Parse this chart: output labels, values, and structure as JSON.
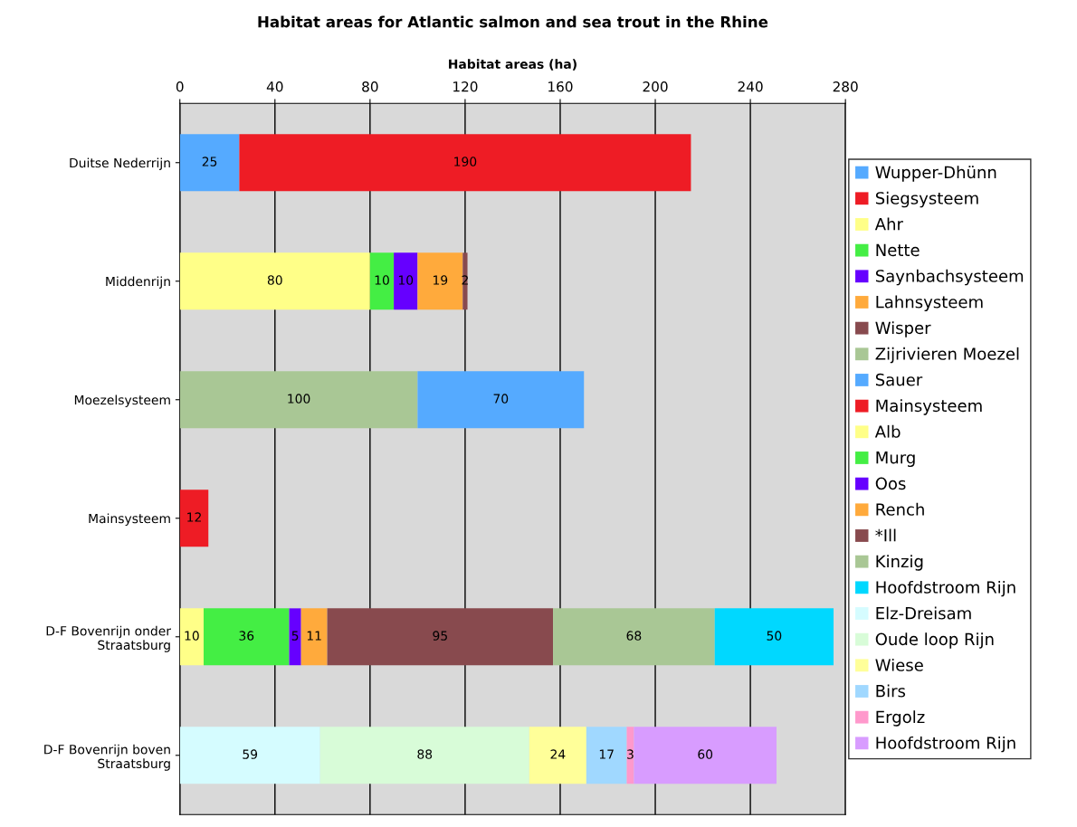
{
  "chart_data": {
    "type": "bar",
    "orientation": "horizontal",
    "stacked": true,
    "data_labels": true,
    "grid": "x",
    "legend": "right",
    "title": "Habitat areas for Atlantic salmon and sea trout in the Rhine",
    "xlabel": "Habitat areas (ha)",
    "categories": [
      "Duitse Nederrijn",
      "Middenrijn",
      "Moezelsysteem",
      "Mainsysteem",
      "D-F Bovenrijn onder Straatsburg",
      "D-F Bovenrijn boven Straatsburg"
    ],
    "xlim": [
      0,
      280
    ],
    "xticks": [
      0,
      40,
      80,
      120,
      160,
      200,
      240,
      280
    ],
    "series": [
      {
        "name": "Wupper-Dhünn",
        "color": "#55aaff",
        "values": [
          25,
          null,
          null,
          null,
          null,
          null
        ]
      },
      {
        "name": "Siegsysteem",
        "color": "#ee1c25",
        "values": [
          190,
          null,
          null,
          null,
          null,
          null
        ]
      },
      {
        "name": "Ahr",
        "color": "#ffff88",
        "values": [
          null,
          80,
          null,
          null,
          null,
          null
        ]
      },
      {
        "name": "Nette",
        "color": "#44ee44",
        "values": [
          null,
          10,
          null,
          null,
          null,
          null
        ]
      },
      {
        "name": "Saynbachsysteem",
        "color": "#6600ff",
        "values": [
          null,
          10,
          null,
          null,
          null,
          null
        ]
      },
      {
        "name": "Lahnsysteem",
        "color": "#ffaa3c",
        "values": [
          null,
          19,
          null,
          null,
          null,
          null
        ]
      },
      {
        "name": "Wisper",
        "color": "#884a4e",
        "values": [
          null,
          2,
          null,
          null,
          null,
          null
        ]
      },
      {
        "name": "Zijrivieren Moezel",
        "color": "#a9c795",
        "values": [
          null,
          null,
          100,
          null,
          null,
          null
        ]
      },
      {
        "name": "Sauer",
        "color": "#55aaff",
        "values": [
          null,
          null,
          70,
          null,
          null,
          null
        ]
      },
      {
        "name": "Mainsysteem",
        "color": "#ee1c25",
        "values": [
          null,
          null,
          null,
          12,
          null,
          null
        ]
      },
      {
        "name": "Alb",
        "color": "#ffff88",
        "values": [
          null,
          null,
          null,
          null,
          10,
          null
        ]
      },
      {
        "name": "Murg",
        "color": "#44ee44",
        "values": [
          null,
          null,
          null,
          null,
          36,
          null
        ]
      },
      {
        "name": "Oos",
        "color": "#6600ff",
        "values": [
          null,
          null,
          null,
          null,
          5,
          null
        ]
      },
      {
        "name": "Rench",
        "color": "#ffaa3c",
        "values": [
          null,
          null,
          null,
          null,
          11,
          null
        ]
      },
      {
        "name": "*Ill",
        "color": "#884a4e",
        "values": [
          null,
          null,
          null,
          null,
          95,
          null
        ]
      },
      {
        "name": "Kinzig",
        "color": "#a9c795",
        "values": [
          null,
          null,
          null,
          null,
          68,
          null
        ]
      },
      {
        "name": "Hoofdstroom Rijn",
        "color": "#00d8ff",
        "values": [
          null,
          null,
          null,
          null,
          50,
          null
        ]
      },
      {
        "name": "Elz-Dreisam",
        "color": "#d5fcff",
        "values": [
          null,
          null,
          null,
          null,
          null,
          59
        ]
      },
      {
        "name": "Oude loop Rijn",
        "color": "#d8fcd8",
        "values": [
          null,
          null,
          null,
          null,
          null,
          88
        ]
      },
      {
        "name": "Wiese",
        "color": "#ffff99",
        "values": [
          null,
          null,
          null,
          null,
          null,
          24
        ]
      },
      {
        "name": "Birs",
        "color": "#a0d8ff",
        "values": [
          null,
          null,
          null,
          null,
          null,
          17
        ]
      },
      {
        "name": "Ergolz",
        "color": "#ff99cc",
        "values": [
          null,
          null,
          null,
          null,
          null,
          3
        ]
      },
      {
        "name": "Hoofdstroom Rijn",
        "color": "#d89cff",
        "values": [
          null,
          null,
          null,
          null,
          null,
          60
        ]
      }
    ]
  }
}
